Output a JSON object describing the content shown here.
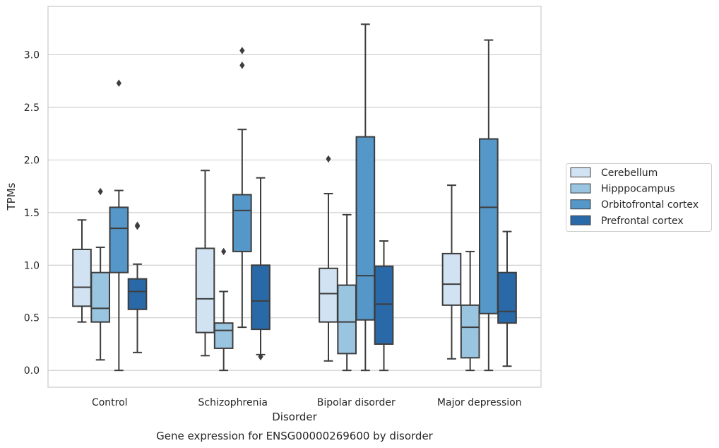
{
  "chart_data": {
    "type": "boxplot",
    "title": "",
    "xlabel": "Disorder",
    "ylabel": "TPMs",
    "caption": "Gene expression for ENSG00000269600 by disorder",
    "categories": [
      "Control",
      "Schizophrenia",
      "Bipolar disorder",
      "Major depression"
    ],
    "ylim": [
      -0.16,
      3.46
    ],
    "yticks": [
      0.0,
      0.5,
      1.0,
      1.5,
      2.0,
      2.5,
      3.0
    ],
    "ytick_labels": [
      "0.0",
      "0.5",
      "1.0",
      "1.5",
      "2.0",
      "2.5",
      "3.0"
    ],
    "grid": "horizontal",
    "legend_position": "right",
    "series": [
      {
        "name": "Cerebellum",
        "color": "#d1e2f2",
        "boxes": [
          {
            "whislo": 0.46,
            "q1": 0.61,
            "med": 0.79,
            "q3": 1.15,
            "whishi": 1.43,
            "fliers": []
          },
          {
            "whislo": 0.14,
            "q1": 0.36,
            "med": 0.68,
            "q3": 1.16,
            "whishi": 1.9,
            "fliers": []
          },
          {
            "whislo": 0.09,
            "q1": 0.46,
            "med": 0.73,
            "q3": 0.97,
            "whishi": 1.68,
            "fliers": [
              2.01
            ]
          },
          {
            "whislo": 0.11,
            "q1": 0.62,
            "med": 0.82,
            "q3": 1.11,
            "whishi": 1.76,
            "fliers": []
          }
        ]
      },
      {
        "name": "Hipppocampus",
        "color": "#9ac5e0",
        "boxes": [
          {
            "whislo": 0.1,
            "q1": 0.46,
            "med": 0.59,
            "q3": 0.93,
            "whishi": 1.17,
            "fliers": [
              1.7
            ]
          },
          {
            "whislo": 0.0,
            "q1": 0.21,
            "med": 0.38,
            "q3": 0.45,
            "whishi": 0.75,
            "fliers": [
              1.13
            ]
          },
          {
            "whislo": 0.0,
            "q1": 0.16,
            "med": 0.46,
            "q3": 0.81,
            "whishi": 1.48,
            "fliers": []
          },
          {
            "whislo": 0.0,
            "q1": 0.12,
            "med": 0.41,
            "q3": 0.62,
            "whishi": 1.13,
            "fliers": []
          }
        ]
      },
      {
        "name": "Orbitofrontal cortex",
        "color": "#5597c8",
        "boxes": [
          {
            "whislo": 0.0,
            "q1": 0.93,
            "med": 1.35,
            "q3": 1.55,
            "whishi": 1.71,
            "fliers": [
              2.73
            ]
          },
          {
            "whislo": 0.41,
            "q1": 1.13,
            "med": 1.52,
            "q3": 1.67,
            "whishi": 2.29,
            "fliers": [
              2.9,
              3.04
            ]
          },
          {
            "whislo": 0.0,
            "q1": 0.48,
            "med": 0.9,
            "q3": 2.22,
            "whishi": 3.29,
            "fliers": []
          },
          {
            "whislo": 0.0,
            "q1": 0.54,
            "med": 1.55,
            "q3": 2.2,
            "whishi": 3.14,
            "fliers": []
          }
        ]
      },
      {
        "name": "Prefrontal cortex",
        "color": "#2a69a8",
        "boxes": [
          {
            "whislo": 0.17,
            "q1": 0.58,
            "med": 0.75,
            "q3": 0.87,
            "whishi": 1.01,
            "fliers": [
              1.37,
              1.38
            ]
          },
          {
            "whislo": 0.15,
            "q1": 0.39,
            "med": 0.66,
            "q3": 1.0,
            "whishi": 1.83,
            "fliers": [
              0.13
            ]
          },
          {
            "whislo": 0.0,
            "q1": 0.25,
            "med": 0.63,
            "q3": 0.99,
            "whishi": 1.23,
            "fliers": []
          },
          {
            "whislo": 0.04,
            "q1": 0.45,
            "med": 0.56,
            "q3": 0.93,
            "whishi": 1.32,
            "fliers": []
          }
        ]
      }
    ]
  }
}
